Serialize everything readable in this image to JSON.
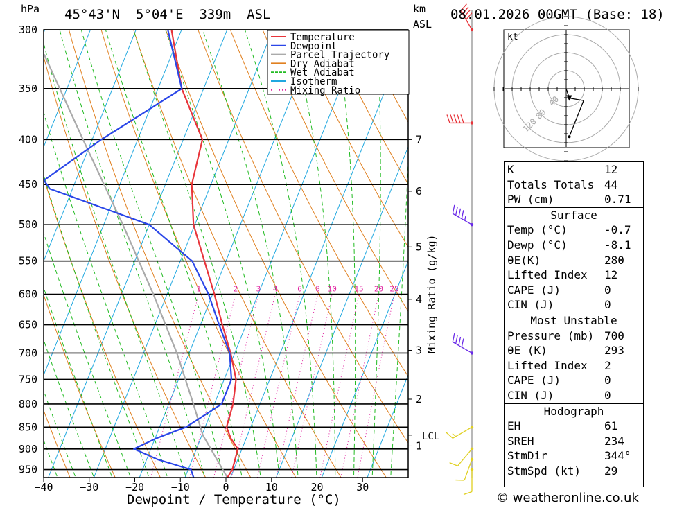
{
  "header": {
    "pressure_unit": "hPa",
    "location": "45°43'N  5°04'E  339m  ASL",
    "height_unit_top": "km",
    "height_unit_bottom": "ASL",
    "datetime": "08.01.2026 00GMT (Base: 18)"
  },
  "chart_data": {
    "type": "skew-t",
    "title": "45°43'N 5°04'E 339m ASL",
    "xlabel": "Dewpoint / Temperature (°C)",
    "ylabel": "hPa",
    "xlim": [
      -40,
      40
    ],
    "ylim": [
      970,
      300
    ],
    "skew_per_decade_dlog10p": 77,
    "x_ticks": [
      -40,
      -30,
      -20,
      -10,
      0,
      10,
      20,
      30
    ],
    "pressure_ticks": [
      300,
      350,
      400,
      450,
      500,
      550,
      600,
      650,
      700,
      750,
      800,
      850,
      900,
      950
    ],
    "height_ticks": [
      {
        "label": "7",
        "p": 400
      },
      {
        "label": "6",
        "p": 458
      },
      {
        "label": "5",
        "p": 530
      },
      {
        "label": "4",
        "p": 608
      },
      {
        "label": "3",
        "p": 695
      },
      {
        "label": "2",
        "p": 790
      },
      {
        "label": "1",
        "p": 893
      }
    ],
    "lcl": {
      "label": "LCL",
      "p": 868
    },
    "mixing_ratio_axis_label": "Mixing Ratio (g/kg)",
    "mixing_ratio_labels": [
      "1",
      "2",
      "3",
      "4",
      "6",
      "8",
      "10",
      "15",
      "20",
      "25"
    ],
    "legend": [
      "Temperature",
      "Dewpoint",
      "Parcel Trajectory",
      "Dry Adiabat",
      "Wet Adiabat",
      "Isotherm",
      "Mixing Ratio"
    ],
    "legend_position": "top-right",
    "colors": {
      "temperature": "#e8343a",
      "dewpoint": "#2a46e8",
      "parcel": "#aaaaaa",
      "dry_adiabat": "#e08020",
      "wet_adiabat": "#22bb22",
      "isotherm": "#20a8e0",
      "mixing_ratio": "#e020a0",
      "wind_upper": "#e8343a",
      "wind_mid": "#6a2ae8",
      "wind_low": "#e0d020"
    },
    "temperature": [
      {
        "p": 970,
        "t": -0.7
      },
      {
        "p": 950,
        "t": -0.3
      },
      {
        "p": 925,
        "t": -0.6
      },
      {
        "p": 900,
        "t": -0.9
      },
      {
        "p": 875,
        "t": -3.4
      },
      {
        "p": 850,
        "t": -5.3
      },
      {
        "p": 800,
        "t": -5.9
      },
      {
        "p": 750,
        "t": -7.4
      },
      {
        "p": 700,
        "t": -10.9
      },
      {
        "p": 650,
        "t": -15.2
      },
      {
        "p": 600,
        "t": -19.6
      },
      {
        "p": 550,
        "t": -24.7
      },
      {
        "p": 500,
        "t": -30.3
      },
      {
        "p": 450,
        "t": -34.2
      },
      {
        "p": 400,
        "t": -35.8
      },
      {
        "p": 350,
        "t": -44.8
      },
      {
        "p": 300,
        "t": -52.2
      }
    ],
    "dewpoint": [
      {
        "p": 970,
        "t": -8.1
      },
      {
        "p": 950,
        "t": -9.4
      },
      {
        "p": 925,
        "t": -17.6
      },
      {
        "p": 900,
        "t": -23.7
      },
      {
        "p": 875,
        "t": -19.7
      },
      {
        "p": 850,
        "t": -14.2
      },
      {
        "p": 800,
        "t": -8.4
      },
      {
        "p": 750,
        "t": -8.4
      },
      {
        "p": 700,
        "t": -11.1
      },
      {
        "p": 650,
        "t": -15.9
      },
      {
        "p": 600,
        "t": -20.9
      },
      {
        "p": 550,
        "t": -27.4
      },
      {
        "p": 500,
        "t": -40.0
      },
      {
        "p": 455,
        "t": -65.0
      },
      {
        "p": 445,
        "t": -67.0
      },
      {
        "p": 400,
        "t": -58.0
      },
      {
        "p": 350,
        "t": -44.8
      },
      {
        "p": 300,
        "t": -53.0
      }
    ],
    "parcel": [
      {
        "p": 970,
        "t": -0.7
      },
      {
        "p": 868,
        "t": -9.8
      },
      {
        "p": 800,
        "t": -14.6
      },
      {
        "p": 700,
        "t": -22.7
      },
      {
        "p": 600,
        "t": -33.0
      },
      {
        "p": 500,
        "t": -45.8
      },
      {
        "p": 400,
        "t": -62.0
      },
      {
        "p": 320,
        "t": -78.0
      }
    ],
    "winds": [
      {
        "p": 300,
        "dir": 330,
        "kt": 40
      },
      {
        "p": 383,
        "dir": 270,
        "kt": 50
      },
      {
        "p": 500,
        "dir": 300,
        "kt": 45
      },
      {
        "p": 700,
        "dir": 300,
        "kt": 40
      },
      {
        "p": 850,
        "dir": 240,
        "kt": 15
      },
      {
        "p": 900,
        "dir": 220,
        "kt": 10
      },
      {
        "p": 925,
        "dir": 200,
        "kt": 10
      },
      {
        "p": 950,
        "dir": 180,
        "kt": 10
      }
    ],
    "hodograph": {
      "unit": "kt",
      "ring_labels": [
        "40",
        "80",
        "120"
      ],
      "points": [
        [
          0,
          0
        ],
        [
          5,
          -15
        ],
        [
          28,
          -19
        ],
        [
          5,
          -77
        ]
      ]
    }
  },
  "indices": {
    "rows": [
      {
        "k": "K",
        "v": "12"
      },
      {
        "k": "Totals Totals",
        "v": "44"
      },
      {
        "k": "PW (cm)",
        "v": "0.71"
      }
    ]
  },
  "surface": {
    "title": "Surface",
    "rows": [
      {
        "k": "Temp (°C)",
        "v": "-0.7"
      },
      {
        "k": "Dewp (°C)",
        "v": "-8.1"
      },
      {
        "k": "θE(K)",
        "v": "280"
      },
      {
        "k": "Lifted Index",
        "v": "12"
      },
      {
        "k": "CAPE (J)",
        "v": "0"
      },
      {
        "k": "CIN (J)",
        "v": "0"
      }
    ]
  },
  "most_unstable": {
    "title": "Most Unstable",
    "rows": [
      {
        "k": "Pressure (mb)",
        "v": "700"
      },
      {
        "k": "θE (K)",
        "v": "293"
      },
      {
        "k": "Lifted Index",
        "v": "2"
      },
      {
        "k": "CAPE (J)",
        "v": "0"
      },
      {
        "k": "CIN (J)",
        "v": "0"
      }
    ]
  },
  "hodograph_table": {
    "title": "Hodograph",
    "rows": [
      {
        "k": "EH",
        "v": "61"
      },
      {
        "k": "SREH",
        "v": "234"
      },
      {
        "k": "StmDir",
        "v": "344°"
      },
      {
        "k": "StmSpd (kt)",
        "v": "29"
      }
    ]
  },
  "copyright": "© weatheronline.co.uk"
}
